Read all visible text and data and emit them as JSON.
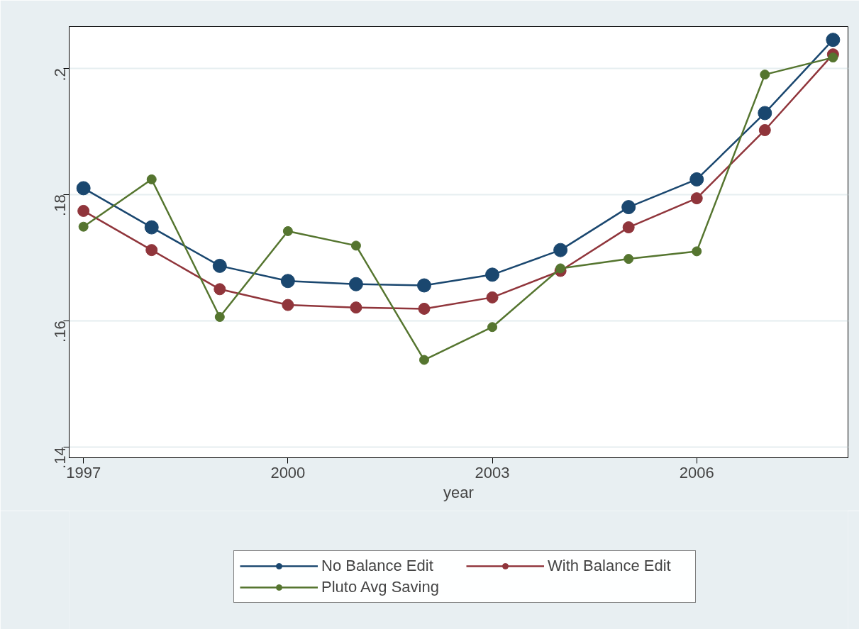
{
  "chart_data": {
    "type": "line",
    "xlabel": "year",
    "x": [
      1997,
      1998,
      1999,
      2000,
      2001,
      2002,
      2003,
      2004,
      2005,
      2006,
      2007,
      2008
    ],
    "xlim": [
      1996.79,
      2008.22
    ],
    "xticks": [
      1997,
      2000,
      2003,
      2006
    ],
    "ylim": [
      0.1383,
      0.2066
    ],
    "yticks": [
      {
        "value": 0.14,
        "label": ".14"
      },
      {
        "value": 0.16,
        "label": ".16"
      },
      {
        "value": 0.18,
        "label": ".18"
      },
      {
        "value": 0.2,
        "label": ".2"
      }
    ],
    "grid": "y",
    "legend": "bottom",
    "marker": "circle",
    "line_style": "solid",
    "series": [
      {
        "name": "No Balance Edit",
        "color": "#1a476f",
        "values": [
          0.181,
          0.1748,
          0.1687,
          0.1663,
          0.1658,
          0.1656,
          0.1673,
          0.1712,
          0.178,
          0.1824,
          0.1929,
          0.2045
        ]
      },
      {
        "name": "With Balance Edit",
        "color": "#90353b",
        "values": [
          0.1774,
          0.1712,
          0.165,
          0.1625,
          0.1621,
          0.1619,
          0.1637,
          0.1679,
          0.1748,
          0.1794,
          0.1902,
          0.2022
        ]
      },
      {
        "name": "Pluto Avg Saving",
        "color": "#55752f",
        "values": [
          0.1749,
          0.1824,
          0.1606,
          0.1742,
          0.1719,
          0.1538,
          0.159,
          0.1683,
          0.1698,
          0.171,
          0.199,
          0.2017
        ]
      }
    ]
  }
}
